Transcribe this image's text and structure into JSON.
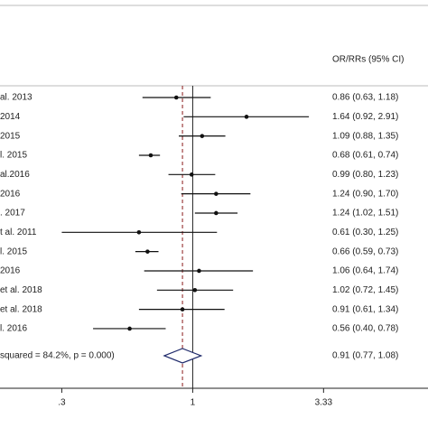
{
  "chart_data": {
    "type": "forest",
    "header": "OR/RRs (95% CI)",
    "categories": [
      "al. 2013",
      "2014",
      "2015",
      "l. 2015",
      "al.2016",
      "2016",
      ". 2017",
      "t al. 2011",
      "l. 2015",
      "2016",
      "et al. 2018",
      "et al. 2018",
      "l. 2016"
    ],
    "values": [
      0.86,
      1.64,
      1.09,
      0.68,
      0.99,
      1.24,
      1.24,
      0.61,
      0.66,
      1.06,
      1.02,
      0.91,
      0.56
    ],
    "lower": [
      0.63,
      0.92,
      0.88,
      0.61,
      0.8,
      0.9,
      1.02,
      0.3,
      0.59,
      0.64,
      0.72,
      0.61,
      0.4
    ],
    "upper": [
      1.18,
      2.91,
      1.35,
      0.74,
      1.23,
      1.7,
      1.51,
      1.25,
      0.73,
      1.74,
      1.45,
      1.34,
      0.78
    ],
    "value_labels": [
      "0.86 (0.63, 1.18)",
      "1.64 (0.92, 2.91)",
      "1.09 (0.88, 1.35)",
      "0.68 (0.61, 0.74)",
      "0.99 (0.80, 1.23)",
      "1.24 (0.90, 1.70)",
      "1.24 (1.02, 1.51)",
      "0.61 (0.30, 1.25)",
      "0.66 (0.59, 0.73)",
      "1.06 (0.64, 1.74)",
      "1.02 (0.72, 1.45)",
      "0.91 (0.61, 1.34)",
      "0.56 (0.40, 0.78)"
    ],
    "overall": {
      "label": "squared = 84.2%, p = 0.000)",
      "value": 0.91,
      "lower": 0.77,
      "upper": 1.08,
      "value_label": "0.91 (0.77, 1.08)"
    },
    "xlim": [
      0.17,
      8.7
    ],
    "xticks": [
      {
        "value": 0.3,
        "label": ".3"
      },
      1,
      3.33
    ],
    "log_scale": true
  }
}
